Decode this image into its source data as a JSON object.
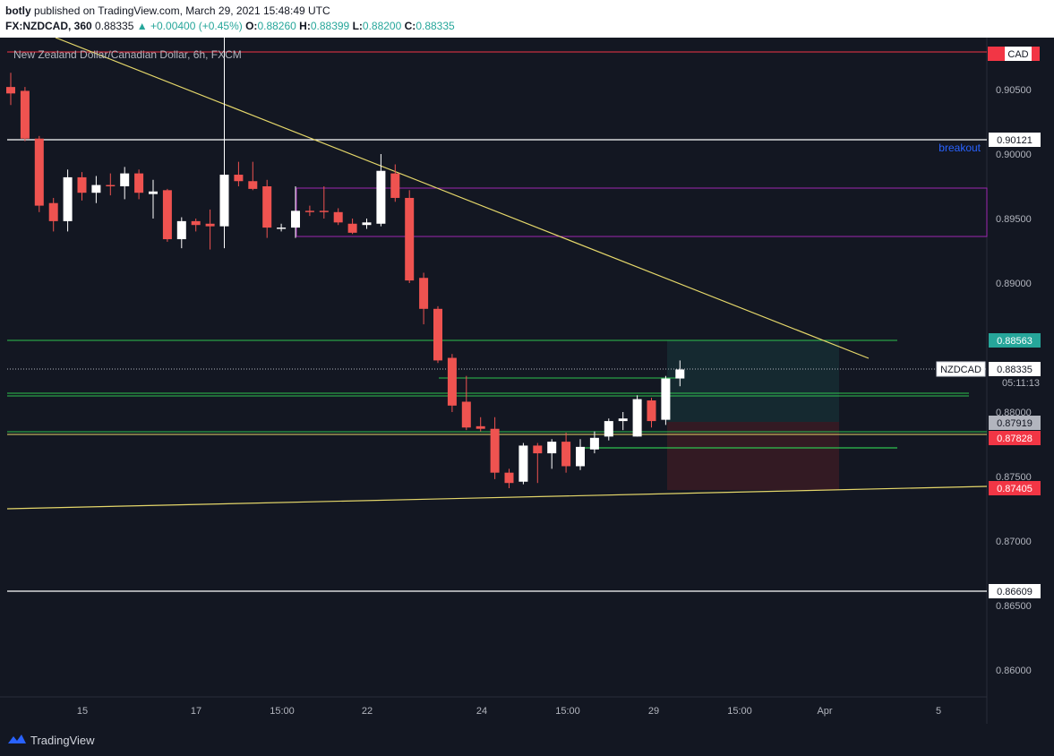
{
  "header": {
    "publisher": "botly",
    "published_text": "published on TradingView.com, March 29, 2021 15:48:49 UTC",
    "symbol": "FX:NZDCAD, 360",
    "last": "0.88335",
    "change": "+0.00400 (+0.45%)",
    "o_label": "O:",
    "o_value": "0.88260",
    "h_label": "H:",
    "h_value": "0.88399",
    "l_label": "L:",
    "l_value": "0.88200",
    "c_label": "C:",
    "c_value": "0.88335"
  },
  "chart": {
    "title": "New Zealand Dollar/Canadian Dollar, 6h, FXCM",
    "currency_badge": "CAD",
    "breakout_label": "breakout",
    "symbol_tag": "NZDCAD",
    "countdown": "05:11:13",
    "colors": {
      "background": "#131722",
      "up": "#ffffff",
      "down": "#ef5350",
      "grid_text": "#b2b5be",
      "trendline": "#e5d76a",
      "green": "#2ec24f",
      "purple": "#9c27b0",
      "price_tag_green": "#26a69a",
      "price_tag_red": "#f23645"
    }
  },
  "footer": {
    "brand": "TradingView"
  },
  "chart_data": {
    "type": "candlestick",
    "title": "New Zealand Dollar/Canadian Dollar, 6h, FXCM",
    "y_ticks": [
      "0.90500",
      "0.90000",
      "0.89500",
      "0.89000",
      "0.88000",
      "0.87500",
      "0.87000",
      "0.86500",
      "0.86000"
    ],
    "y_ticks_values": [
      0.905,
      0.9,
      0.895,
      0.89,
      0.88,
      0.875,
      0.87,
      0.865,
      0.86
    ],
    "x_ticks": [
      "15",
      "17",
      "15:00",
      "22",
      "24",
      "15:00",
      "29",
      "15:00",
      "Apr",
      "5"
    ],
    "x_ticks_index": [
      5,
      13,
      19,
      25,
      33,
      39,
      45,
      51,
      57,
      65
    ],
    "ylim": [
      0.8565,
      0.9095
    ],
    "candles": [
      {
        "o": 0.9052,
        "h": 0.9063,
        "l": 0.9038,
        "c": 0.9047
      },
      {
        "o": 0.9049,
        "h": 0.9052,
        "l": 0.901,
        "c": 0.9012
      },
      {
        "o": 0.9012,
        "h": 0.9014,
        "l": 0.8955,
        "c": 0.896
      },
      {
        "o": 0.8962,
        "h": 0.8966,
        "l": 0.894,
        "c": 0.8948
      },
      {
        "o": 0.8948,
        "h": 0.8988,
        "l": 0.894,
        "c": 0.8982
      },
      {
        "o": 0.8982,
        "h": 0.8986,
        "l": 0.8964,
        "c": 0.897
      },
      {
        "o": 0.897,
        "h": 0.8983,
        "l": 0.8962,
        "c": 0.8976
      },
      {
        "o": 0.8976,
        "h": 0.8985,
        "l": 0.8968,
        "c": 0.8975
      },
      {
        "o": 0.8975,
        "h": 0.899,
        "l": 0.8965,
        "c": 0.8985
      },
      {
        "o": 0.8985,
        "h": 0.8988,
        "l": 0.8965,
        "c": 0.897
      },
      {
        "o": 0.8969,
        "h": 0.898,
        "l": 0.895,
        "c": 0.8971
      },
      {
        "o": 0.8972,
        "h": 0.8973,
        "l": 0.8932,
        "c": 0.8934
      },
      {
        "o": 0.8934,
        "h": 0.8951,
        "l": 0.8927,
        "c": 0.8948
      },
      {
        "o": 0.8948,
        "h": 0.895,
        "l": 0.894,
        "c": 0.8945
      },
      {
        "o": 0.8946,
        "h": 0.8957,
        "l": 0.8926,
        "c": 0.8944
      },
      {
        "o": 0.8944,
        "h": 0.9114,
        "l": 0.8927,
        "c": 0.8984
      },
      {
        "o": 0.8984,
        "h": 0.8994,
        "l": 0.8975,
        "c": 0.8979
      },
      {
        "o": 0.8979,
        "h": 0.8994,
        "l": 0.8972,
        "c": 0.8973
      },
      {
        "o": 0.8975,
        "h": 0.898,
        "l": 0.8935,
        "c": 0.8943
      },
      {
        "o": 0.8942,
        "h": 0.8946,
        "l": 0.894,
        "c": 0.8943
      },
      {
        "o": 0.8943,
        "h": 0.8975,
        "l": 0.8935,
        "c": 0.8956
      },
      {
        "o": 0.8956,
        "h": 0.896,
        "l": 0.8952,
        "c": 0.8955
      },
      {
        "o": 0.8956,
        "h": 0.8975,
        "l": 0.895,
        "c": 0.8955
      },
      {
        "o": 0.8955,
        "h": 0.8958,
        "l": 0.8945,
        "c": 0.8947
      },
      {
        "o": 0.8946,
        "h": 0.895,
        "l": 0.8938,
        "c": 0.8939
      },
      {
        "o": 0.8945,
        "h": 0.895,
        "l": 0.8942,
        "c": 0.8947
      },
      {
        "o": 0.8946,
        "h": 0.9,
        "l": 0.8944,
        "c": 0.8987
      },
      {
        "o": 0.8985,
        "h": 0.8992,
        "l": 0.8963,
        "c": 0.8966
      },
      {
        "o": 0.8966,
        "h": 0.8972,
        "l": 0.89,
        "c": 0.8902
      },
      {
        "o": 0.8904,
        "h": 0.8908,
        "l": 0.8868,
        "c": 0.888
      },
      {
        "o": 0.888,
        "h": 0.8882,
        "l": 0.8838,
        "c": 0.884
      },
      {
        "o": 0.8842,
        "h": 0.8845,
        "l": 0.88,
        "c": 0.8805
      },
      {
        "o": 0.8808,
        "h": 0.8828,
        "l": 0.8786,
        "c": 0.8788
      },
      {
        "o": 0.8789,
        "h": 0.8796,
        "l": 0.8785,
        "c": 0.8787
      },
      {
        "o": 0.8787,
        "h": 0.8796,
        "l": 0.8748,
        "c": 0.8753
      },
      {
        "o": 0.8753,
        "h": 0.8756,
        "l": 0.8741,
        "c": 0.8745
      },
      {
        "o": 0.8746,
        "h": 0.8776,
        "l": 0.8744,
        "c": 0.8774
      },
      {
        "o": 0.8774,
        "h": 0.8776,
        "l": 0.8745,
        "c": 0.8768
      },
      {
        "o": 0.8768,
        "h": 0.8779,
        "l": 0.8756,
        "c": 0.8777
      },
      {
        "o": 0.8777,
        "h": 0.8784,
        "l": 0.8753,
        "c": 0.8758
      },
      {
        "o": 0.8758,
        "h": 0.8779,
        "l": 0.8755,
        "c": 0.8773
      },
      {
        "o": 0.8771,
        "h": 0.8785,
        "l": 0.8768,
        "c": 0.878
      },
      {
        "o": 0.8781,
        "h": 0.8795,
        "l": 0.8778,
        "c": 0.8793
      },
      {
        "o": 0.8793,
        "h": 0.88,
        "l": 0.8786,
        "c": 0.8795
      },
      {
        "o": 0.8781,
        "h": 0.8813,
        "l": 0.8781,
        "c": 0.881
      },
      {
        "o": 0.8809,
        "h": 0.8811,
        "l": 0.8788,
        "c": 0.8793
      },
      {
        "o": 0.8794,
        "h": 0.8828,
        "l": 0.879,
        "c": 0.8826
      },
      {
        "o": 0.8826,
        "h": 0.884,
        "l": 0.882,
        "c": 0.8833
      }
    ],
    "horizontal_levels": [
      {
        "price": "0.90121",
        "value": 0.90121
      },
      {
        "price": "0.88563",
        "value": 0.88563
      },
      {
        "price": "0.88335",
        "value": 0.88335
      },
      {
        "price": "0.87919",
        "value": 0.87919
      },
      {
        "price": "0.87828",
        "value": 0.87828
      },
      {
        "price": "0.87405",
        "value": 0.87405
      },
      {
        "price": "0.86609",
        "value": 0.86609
      }
    ]
  }
}
